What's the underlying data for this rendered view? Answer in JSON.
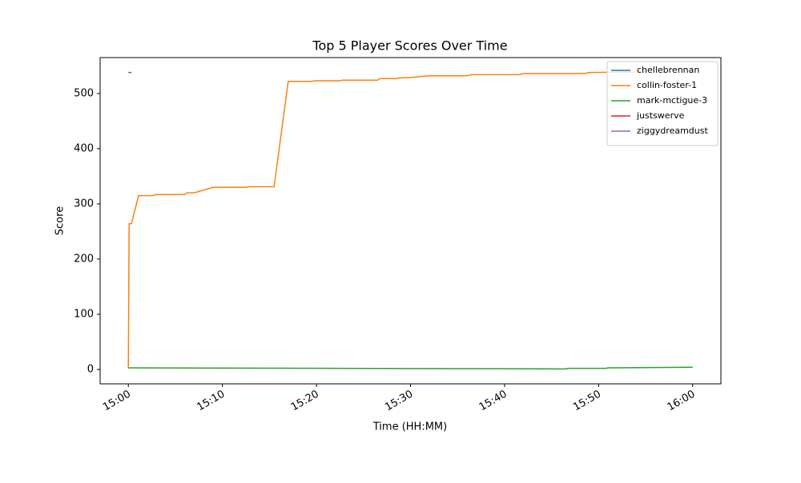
{
  "chart_data": {
    "type": "line",
    "title": "Top 5 Player Scores Over Time",
    "x_label": "Time (HH:MM)",
    "y_label": "Score",
    "xlim": [
      "14:57",
      "16:03"
    ],
    "xticks": [
      "15:00",
      "15:10",
      "15:20",
      "15:30",
      "15:40",
      "15:50",
      "16:00"
    ],
    "ylim": [
      -26,
      565
    ],
    "yticks": [
      0,
      100,
      200,
      300,
      400,
      500
    ],
    "legend": "upper right",
    "grid": false,
    "series": [
      {
        "name": "chellebrennan",
        "color": "#1f77b4",
        "x": [
          "15:00:00",
          "15:00:20"
        ],
        "values": [
          538,
          538
        ]
      },
      {
        "name": "collin-foster-1",
        "color": "#ff7f0e",
        "x": [
          "15:00:00",
          "15:00:05",
          "15:00:20",
          "15:01:05",
          "15:02:30",
          "15:03:00",
          "15:06:00",
          "15:06:15",
          "15:07:00",
          "15:09:00",
          "15:12:30",
          "15:12:45",
          "15:15:30",
          "15:17:00",
          "15:19:30",
          "15:19:45",
          "15:22:30",
          "15:22:45",
          "15:26:30",
          "15:26:45",
          "15:28:30",
          "15:28:45",
          "15:30:00",
          "15:32:00",
          "15:36:00",
          "15:36:30",
          "15:41:30",
          "15:42:00",
          "15:48:30",
          "15:49:00",
          "15:55:00"
        ],
        "values": [
          2,
          264,
          264,
          315,
          315,
          317,
          317,
          320,
          320,
          330,
          330,
          331,
          331,
          522,
          522,
          523,
          523,
          524,
          524,
          527,
          527,
          528,
          529,
          532,
          532,
          534,
          534,
          536,
          536,
          538,
          539
        ]
      },
      {
        "name": "mark-mctigue-3",
        "color": "#2ca02c",
        "x": [
          "15:00:00",
          "15:46:30",
          "15:46:45",
          "15:50:45",
          "15:51:00",
          "16:00:00"
        ],
        "values": [
          3,
          1,
          2,
          2,
          3,
          4
        ]
      },
      {
        "name": "justswerve",
        "color": "#d62728",
        "x": [],
        "values": []
      },
      {
        "name": "ziggydreamdust",
        "color": "#9467bd",
        "x": [],
        "values": []
      }
    ]
  }
}
